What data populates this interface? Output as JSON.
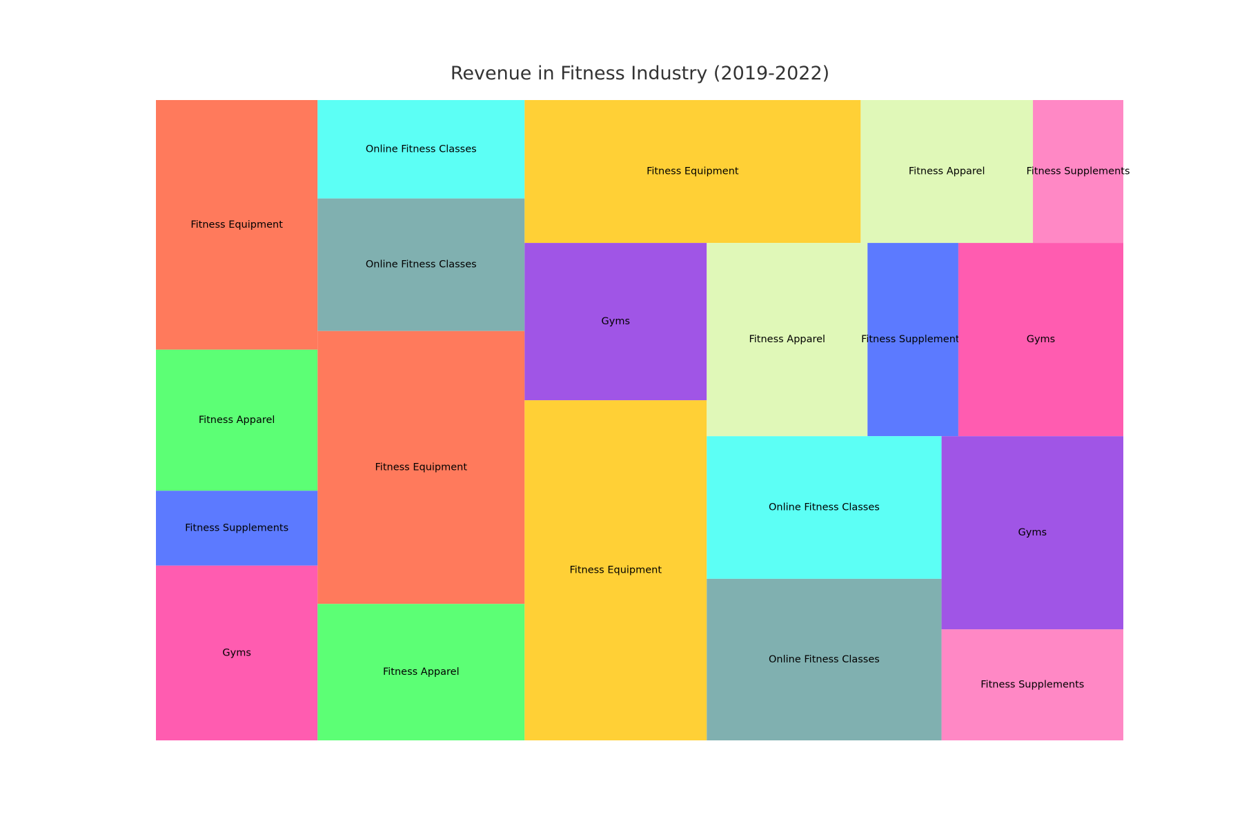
{
  "chart_data": {
    "type": "treemap",
    "title": "Revenue in Fitness Industry (2019-2022)",
    "colors": {
      "coral": "#FF7A5C",
      "green": "#5CFF75",
      "blue": "#5C7AFF",
      "pink": "#FF5CB0",
      "cyan": "#5CFFF5",
      "teal": "#80B0B0",
      "lime": "#E0F8B8",
      "yellow": "#FFD036",
      "purple": "#A055E6",
      "light_pink": "#FF88C5"
    },
    "tiles": [
      {
        "label": "Fitness Equipment",
        "value": 100,
        "color": "coral"
      },
      {
        "label": "Fitness Apparel",
        "value": 56.5,
        "color": "green"
      },
      {
        "label": "Fitness Supplements",
        "value": 30,
        "color": "blue"
      },
      {
        "label": "Gyms",
        "value": 70,
        "color": "pink"
      },
      {
        "label": "Online Fitness Classes",
        "value": 50.5,
        "color": "cyan"
      },
      {
        "label": "Online Fitness Classes",
        "value": 68,
        "color": "teal"
      },
      {
        "label": "Fitness Equipment",
        "value": 140,
        "color": "coral"
      },
      {
        "label": "Fitness Apparel",
        "value": 70,
        "color": "green"
      },
      {
        "label": "Fitness Equipment",
        "value": 119,
        "color": "yellow"
      },
      {
        "label": "Fitness Apparel",
        "value": 61,
        "color": "lime"
      },
      {
        "label": "Fitness Supplements",
        "value": 32,
        "color": "light_pink"
      },
      {
        "label": "Gyms",
        "value": 71,
        "color": "purple"
      },
      {
        "label": "Fitness Equipment",
        "value": 153.5,
        "color": "yellow"
      },
      {
        "label": "Fitness Apparel",
        "value": 77,
        "color": "lime"
      },
      {
        "label": "Fitness Supplements",
        "value": 43.5,
        "color": "blue"
      },
      {
        "label": "Gyms",
        "value": 79,
        "color": "pink"
      },
      {
        "label": "Online Fitness Classes",
        "value": 83,
        "color": "cyan"
      },
      {
        "label": "Online Fitness Classes",
        "value": 94,
        "color": "teal"
      },
      {
        "label": "Gyms",
        "value": 87,
        "color": "purple"
      },
      {
        "label": "Fitness Supplements",
        "value": 50,
        "color": "light_pink"
      }
    ]
  }
}
